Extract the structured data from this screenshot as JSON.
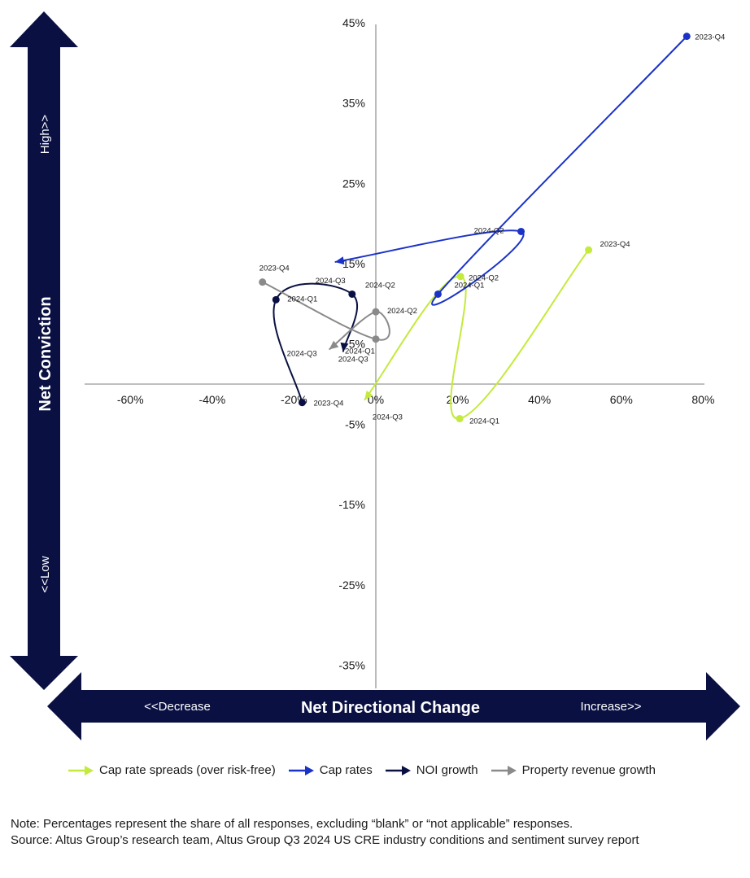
{
  "axes": {
    "y_title": "Net Conviction",
    "y_high": "High>>",
    "y_low": "<<Low",
    "x_title": "Net Directional Change",
    "x_decrease": "<<Decrease",
    "x_increase": "Increase>>"
  },
  "colors": {
    "arrow_bg": "#0a1142",
    "cap_rate_spreads": "#c3ea3c",
    "cap_rates": "#1a32c8",
    "noi_growth": "#0a1142",
    "property_revenue_growth": "#8a8a8a"
  },
  "chart_data": {
    "type": "scatter",
    "x_ticks": [
      "-60%",
      "-40%",
      "-20%",
      "0%",
      "20%",
      "40%",
      "60%",
      "80%"
    ],
    "y_ticks": [
      "45%",
      "35%",
      "25%",
      "15%",
      "5%",
      "-5%",
      "-15%",
      "-25%",
      "-35%"
    ],
    "xlim": [
      -78,
      82
    ],
    "ylim": [
      -38,
      45
    ],
    "series": [
      {
        "name": "Cap rate spreads (over risk-free)",
        "color_key": "cap_rate_spreads",
        "points": [
          {
            "label": "2023-Q4",
            "x": 52,
            "y": 16.7
          },
          {
            "label": "2024-Q1",
            "x": 20.5,
            "y": -4.3
          },
          {
            "label": "2024-Q2",
            "x": 20.7,
            "y": 13.4
          },
          {
            "label": "2024-Q3",
            "x": -2.8,
            "y": -2
          }
        ]
      },
      {
        "name": "Cap rates",
        "color_key": "cap_rates",
        "points": [
          {
            "label": "2023-Q4",
            "x": 76,
            "y": 43.3
          },
          {
            "label": "2024-Q1",
            "x": 15.2,
            "y": 11.2
          },
          {
            "label": "2024-Q2",
            "x": 35.5,
            "y": 19
          },
          {
            "label": "2024-Q3",
            "x": -10,
            "y": 15.2
          }
        ]
      },
      {
        "name": "NOI growth",
        "color_key": "noi_growth",
        "points": [
          {
            "label": "2023-Q4",
            "x": -18,
            "y": -2.3
          },
          {
            "label": "2024-Q1",
            "x": -24.4,
            "y": 10.5
          },
          {
            "label": "2024-Q2",
            "x": -5.8,
            "y": 11.2
          },
          {
            "label": "2024-Q3",
            "x": -8,
            "y": 4
          }
        ]
      },
      {
        "name": "Property revenue growth",
        "color_key": "property_revenue_growth",
        "points": [
          {
            "label": "2023-Q4",
            "x": -27.7,
            "y": 12.7
          },
          {
            "label": "2024-Q1",
            "x": 0,
            "y": 5.6
          },
          {
            "label": "2024-Q2",
            "x": 0,
            "y": 9
          },
          {
            "label": "2024-Q3",
            "x": -11.4,
            "y": 4.3
          }
        ]
      }
    ],
    "overlap_labels": [
      "15%",
      "5%"
    ]
  },
  "legend": [
    {
      "label": "Cap rate spreads (over risk-free)",
      "color_key": "cap_rate_spreads"
    },
    {
      "label": "Cap rates",
      "color_key": "cap_rates"
    },
    {
      "label": "NOI growth",
      "color_key": "noi_growth"
    },
    {
      "label": "Property revenue growth",
      "color_key": "property_revenue_growth"
    }
  ],
  "notes": {
    "note": "Note: Percentages represent the share of all responses, excluding “blank” or “not applicable” responses.",
    "source": "Source: Altus Group’s research team, Altus Group Q3 2024 US CRE industry conditions and sentiment survey report"
  }
}
